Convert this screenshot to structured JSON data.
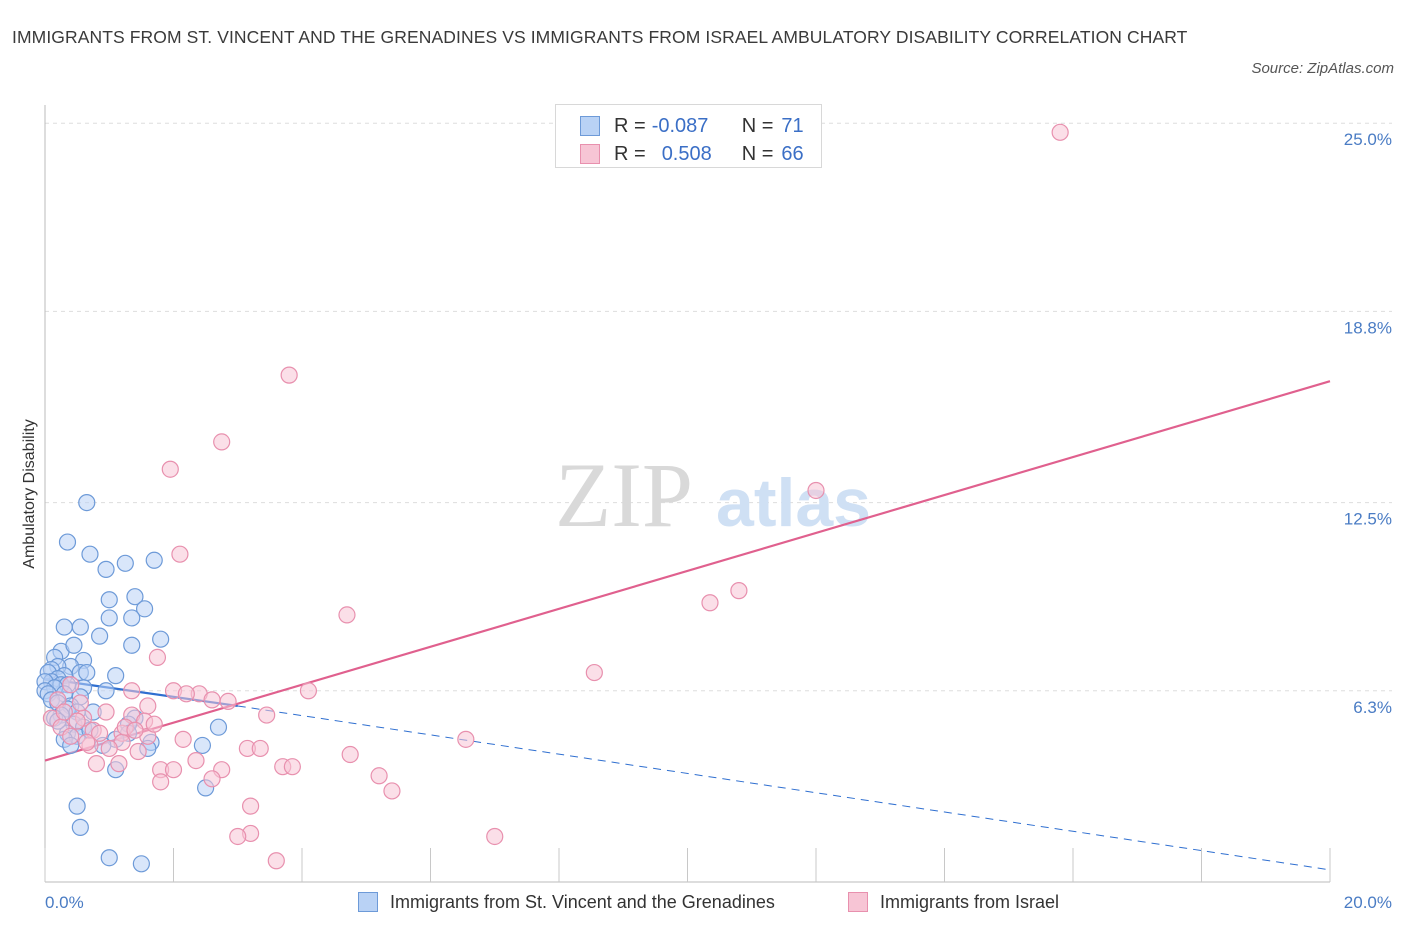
{
  "title": "IMMIGRANTS FROM ST. VINCENT AND THE GRENADINES VS IMMIGRANTS FROM ISRAEL AMBULATORY DISABILITY CORRELATION CHART",
  "source": "Source: ZipAtlas.com",
  "watermark": {
    "zip": "ZIP",
    "atlas": "atlas"
  },
  "legend_top": {
    "rows": [
      {
        "r_label": "R =",
        "r_value": "-0.087",
        "n_label": "N =",
        "n_value": "71"
      },
      {
        "r_label": "R =",
        "r_value": "0.508",
        "n_label": "N =",
        "n_value": "66"
      }
    ]
  },
  "legend_bottom": {
    "items": [
      {
        "label": "Immigrants from St. Vincent and the Grenadines"
      },
      {
        "label": "Immigrants from Israel"
      }
    ]
  },
  "colors": {
    "blue_fill": "#b9d2f5",
    "blue_stroke": "#6d9ad8",
    "blue_line": "#2f6fd0",
    "pink_fill": "#f7c5d5",
    "pink_stroke": "#e890ae",
    "pink_line": "#e0608e",
    "grid": "#dddddd",
    "tick_text": "#4a7cc4"
  },
  "chart_data": {
    "type": "scatter",
    "title": "IMMIGRANTS FROM ST. VINCENT AND THE GRENADINES VS IMMIGRANTS FROM ISRAEL AMBULATORY DISABILITY CORRELATION CHART",
    "xlabel": "",
    "ylabel": "Ambulatory Disability",
    "xlim": [
      0,
      20
    ],
    "ylim": [
      0,
      25.6
    ],
    "x_tick_labels": [
      "0.0%",
      "20.0%"
    ],
    "y_ticks": [
      6.3,
      12.5,
      18.8,
      25.0
    ],
    "y_tick_labels": [
      "6.3%",
      "12.5%",
      "18.8%",
      "25.0%"
    ],
    "series": [
      {
        "name": "Immigrants from St. Vincent and the Grenadines",
        "color": "blue",
        "R": -0.087,
        "N": 71,
        "trend": {
          "x0": 0,
          "y0": 6.7,
          "x1": 3,
          "y1": 5.8,
          "dash_x1": 20,
          "dash_y1": 0.4
        },
        "points": [
          [
            0.65,
            12.5
          ],
          [
            0.35,
            11.2
          ],
          [
            0.7,
            10.8
          ],
          [
            0.95,
            10.3
          ],
          [
            1.25,
            10.5
          ],
          [
            1.7,
            10.6
          ],
          [
            1.0,
            9.3
          ],
          [
            1.4,
            9.4
          ],
          [
            1.55,
            9.0
          ],
          [
            0.3,
            8.4
          ],
          [
            0.55,
            8.4
          ],
          [
            1.0,
            8.7
          ],
          [
            1.35,
            8.7
          ],
          [
            0.85,
            8.1
          ],
          [
            1.8,
            8.0
          ],
          [
            0.25,
            7.6
          ],
          [
            0.45,
            7.8
          ],
          [
            1.35,
            7.8
          ],
          [
            0.15,
            7.4
          ],
          [
            0.6,
            7.3
          ],
          [
            0.4,
            7.1
          ],
          [
            0.2,
            7.1
          ],
          [
            0.1,
            7.0
          ],
          [
            0.55,
            6.9
          ],
          [
            0.05,
            6.9
          ],
          [
            0.65,
            6.9
          ],
          [
            1.1,
            6.8
          ],
          [
            0.3,
            6.8
          ],
          [
            0.2,
            6.7
          ],
          [
            0.1,
            6.6
          ],
          [
            0.0,
            6.6
          ],
          [
            0.25,
            6.5
          ],
          [
            0.35,
            6.5
          ],
          [
            0.6,
            6.4
          ],
          [
            0.15,
            6.4
          ],
          [
            0.0,
            6.3
          ],
          [
            0.05,
            6.2
          ],
          [
            0.3,
            6.2
          ],
          [
            0.55,
            6.1
          ],
          [
            0.95,
            6.3
          ],
          [
            0.1,
            6.0
          ],
          [
            0.2,
            5.9
          ],
          [
            0.4,
            5.8
          ],
          [
            0.35,
            5.7
          ],
          [
            0.5,
            5.6
          ],
          [
            0.25,
            5.5
          ],
          [
            0.75,
            5.6
          ],
          [
            1.4,
            5.4
          ],
          [
            0.15,
            5.4
          ],
          [
            0.45,
            5.2
          ],
          [
            0.6,
            5.1
          ],
          [
            1.3,
            5.2
          ],
          [
            2.7,
            5.1
          ],
          [
            0.35,
            4.9
          ],
          [
            0.5,
            4.8
          ],
          [
            1.3,
            4.9
          ],
          [
            0.3,
            4.7
          ],
          [
            1.1,
            4.7
          ],
          [
            1.65,
            4.6
          ],
          [
            0.4,
            4.5
          ],
          [
            0.9,
            4.5
          ],
          [
            2.45,
            4.5
          ],
          [
            1.6,
            4.4
          ],
          [
            1.1,
            3.7
          ],
          [
            2.5,
            3.1
          ],
          [
            0.5,
            2.5
          ],
          [
            0.55,
            1.8
          ],
          [
            1.0,
            0.8
          ],
          [
            1.5,
            0.6
          ],
          [
            0.2,
            5.3
          ],
          [
            0.7,
            5.0
          ]
        ]
      },
      {
        "name": "Immigrants from Israel",
        "color": "pink",
        "R": 0.508,
        "N": 66,
        "trend": {
          "x0": 0,
          "y0": 4.0,
          "x1": 20,
          "y1": 16.5
        },
        "points": [
          [
            15.8,
            24.7
          ],
          [
            3.8,
            16.7
          ],
          [
            2.75,
            14.5
          ],
          [
            1.95,
            13.6
          ],
          [
            12.0,
            12.9
          ],
          [
            2.1,
            10.8
          ],
          [
            10.8,
            9.6
          ],
          [
            10.35,
            9.2
          ],
          [
            4.7,
            8.8
          ],
          [
            1.75,
            7.4
          ],
          [
            8.55,
            6.9
          ],
          [
            4.1,
            6.3
          ],
          [
            1.35,
            6.3
          ],
          [
            2.0,
            6.3
          ],
          [
            2.4,
            6.2
          ],
          [
            2.2,
            6.2
          ],
          [
            2.6,
            6.0
          ],
          [
            2.85,
            5.95
          ],
          [
            1.6,
            5.8
          ],
          [
            0.95,
            5.6
          ],
          [
            1.35,
            5.5
          ],
          [
            0.6,
            5.4
          ],
          [
            3.45,
            5.5
          ],
          [
            0.1,
            5.4
          ],
          [
            1.55,
            5.3
          ],
          [
            0.25,
            5.1
          ],
          [
            0.75,
            5.0
          ],
          [
            0.85,
            4.9
          ],
          [
            1.2,
            4.9
          ],
          [
            0.4,
            4.8
          ],
          [
            1.6,
            4.8
          ],
          [
            2.15,
            4.7
          ],
          [
            1.2,
            4.6
          ],
          [
            1.0,
            4.4
          ],
          [
            6.55,
            4.7
          ],
          [
            0.7,
            4.5
          ],
          [
            1.45,
            4.3
          ],
          [
            3.15,
            4.4
          ],
          [
            3.35,
            4.4
          ],
          [
            4.75,
            4.2
          ],
          [
            2.35,
            4.0
          ],
          [
            1.15,
            3.9
          ],
          [
            0.8,
            3.9
          ],
          [
            1.8,
            3.7
          ],
          [
            2.0,
            3.7
          ],
          [
            3.7,
            3.8
          ],
          [
            2.75,
            3.7
          ],
          [
            5.2,
            3.5
          ],
          [
            3.85,
            3.8
          ],
          [
            2.6,
            3.4
          ],
          [
            1.8,
            3.3
          ],
          [
            5.4,
            3.0
          ],
          [
            3.2,
            2.5
          ],
          [
            3.2,
            1.6
          ],
          [
            3.0,
            1.5
          ],
          [
            7.0,
            1.5
          ],
          [
            3.6,
            0.7
          ],
          [
            0.4,
            6.5
          ],
          [
            0.2,
            6.0
          ],
          [
            0.55,
            5.9
          ],
          [
            0.3,
            5.6
          ],
          [
            1.7,
            5.2
          ],
          [
            0.5,
            5.3
          ],
          [
            1.25,
            5.1
          ],
          [
            1.4,
            5.0
          ],
          [
            0.65,
            4.6
          ]
        ]
      }
    ]
  }
}
